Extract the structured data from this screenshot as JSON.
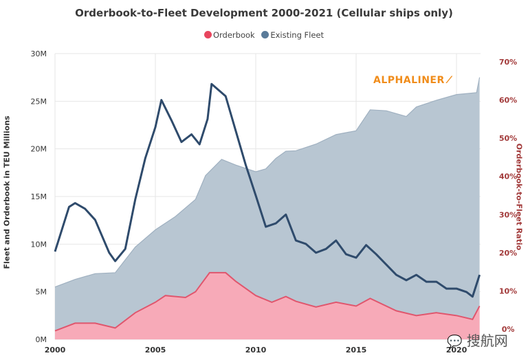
{
  "chart_data": {
    "type": "area",
    "title": "Orderbook-to-Fleet Development 2000-2021 (Cellular ships only)",
    "ylabel": "Fleet and Orderbook in TEU Millions",
    "y2label": "Orderbook-to-Fleet Ratio",
    "ylim": [
      0,
      30
    ],
    "y2lim": [
      0,
      70
    ],
    "xlim": [
      2000,
      2021.2
    ],
    "x_ticks": [
      "2000",
      "2005",
      "2010",
      "2015",
      "2020"
    ],
    "x_tick_values": [
      2000,
      2005,
      2010,
      2015,
      2020
    ],
    "y_ticks": [
      "0M",
      "5M",
      "10M",
      "15M",
      "20M",
      "25M",
      "30M"
    ],
    "y_tick_values": [
      0,
      5,
      10,
      15,
      20,
      25,
      30
    ],
    "y2_ticks": [
      "0%",
      "10%",
      "20%",
      "30%",
      "40%",
      "50%",
      "60%",
      "70%"
    ],
    "y2_tick_values": [
      0,
      10,
      20,
      30,
      40,
      50,
      60,
      70
    ],
    "grid": true,
    "legend": {
      "placement": "top-center",
      "entries": [
        "Orderbook",
        "Existing Fleet"
      ]
    },
    "series": [
      {
        "name": "Existing Fleet",
        "kind": "area",
        "axis": "left",
        "color": "#b8c6d2",
        "x": [
          2000,
          2001,
          2002,
          2003,
          2004,
          2005,
          2006,
          2007,
          2007.5,
          2008.3,
          2009,
          2010,
          2010.5,
          2011,
          2011.5,
          2012,
          2013,
          2014,
          2015,
          2015.7,
          2016.5,
          2017.5,
          2018,
          2019,
          2020,
          2021,
          2021.15
        ],
        "values": [
          5.5,
          6.3,
          6.9,
          7.0,
          9.7,
          11.5,
          12.9,
          14.7,
          17.2,
          18.9,
          18.3,
          17.6,
          17.9,
          19.0,
          19.75,
          19.8,
          20.5,
          21.5,
          21.9,
          24.1,
          24.0,
          23.4,
          24.4,
          25.1,
          25.7,
          25.9,
          27.5
        ]
      },
      {
        "name": "Orderbook",
        "kind": "area",
        "axis": "left",
        "color": "#f7aab8",
        "line": "#e0566d",
        "x": [
          2000,
          2001,
          2002,
          2003,
          2004,
          2005,
          2005.5,
          2006.5,
          2007,
          2007.7,
          2008.5,
          2009,
          2010,
          2010.8,
          2011.5,
          2012,
          2013,
          2014,
          2015,
          2015.7,
          2017,
          2018,
          2019,
          2020,
          2020.8,
          2021.15
        ],
        "values": [
          0.9,
          1.7,
          1.7,
          1.2,
          2.8,
          3.9,
          4.6,
          4.4,
          5.0,
          7.0,
          7.0,
          6.1,
          4.6,
          3.9,
          4.5,
          4.0,
          3.4,
          3.9,
          3.5,
          4.3,
          3.0,
          2.5,
          2.8,
          2.5,
          2.1,
          3.5
        ]
      },
      {
        "name": "Orderbook-to-Fleet Ratio",
        "kind": "line",
        "axis": "right",
        "color": "#2f4b6c",
        "x": [
          2000,
          2000.7,
          2001,
          2001.5,
          2002,
          2002.7,
          2003,
          2003.5,
          2004,
          2004.5,
          2005,
          2005.3,
          2005.8,
          2006.3,
          2006.8,
          2007.2,
          2007.6,
          2007.8,
          2008.5,
          2009,
          2009.5,
          2010,
          2010.5,
          2011,
          2011.5,
          2012,
          2012.5,
          2013,
          2013.5,
          2014,
          2014.5,
          2015,
          2015.5,
          2016,
          2016.5,
          2017,
          2017.5,
          2018,
          2018.5,
          2019,
          2019.5,
          2020,
          2020.5,
          2020.8,
          2021.15
        ],
        "values": [
          20.3,
          32,
          33,
          31.5,
          28.6,
          20,
          17.8,
          21,
          34,
          44.8,
          52.9,
          60,
          54.7,
          49,
          51,
          48.4,
          55,
          64.2,
          61,
          52,
          43,
          35,
          26.8,
          27.7,
          30,
          23.2,
          22.3,
          20,
          21,
          23.2,
          19.6,
          18.7,
          22,
          19.6,
          16.9,
          14.2,
          12.8,
          14.2,
          12.4,
          12.4,
          10.6,
          10.6,
          9.7,
          8.5,
          14.2
        ]
      }
    ]
  },
  "branding": {
    "logo_text": "ALPHALINER",
    "watermark_text": "搜航网"
  },
  "colors": {
    "right_axis": "#a23a3a",
    "logo": "#f08c1a"
  }
}
